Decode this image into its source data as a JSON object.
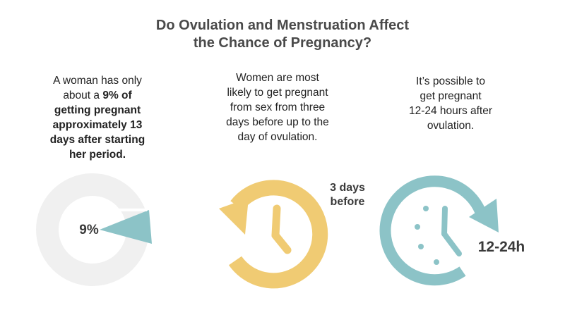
{
  "title": {
    "line1": "Do Ovulation and Menstruation Affect",
    "line2": "the Chance of Pregnancy?"
  },
  "col1": {
    "lines": [
      {
        "plain": "A woman has only",
        "bold": ""
      },
      {
        "plain": "about a ",
        "bold": "9% of"
      },
      {
        "plain": "",
        "bold": "getting pregnant"
      },
      {
        "plain": "",
        "bold": "approximately 13"
      },
      {
        "plain": "",
        "bold": "days after starting"
      },
      {
        "plain": "",
        "bold": "her period."
      }
    ],
    "pie_label": "9%"
  },
  "col2": {
    "lines": [
      "Women are most",
      "likely to get pregnant",
      "from sex from three",
      "days before up to the",
      "day of ovulation."
    ],
    "icon_label_line1": "3 days",
    "icon_label_line2": "before"
  },
  "col3": {
    "lines": [
      "It’s possible to",
      "get pregnant",
      "12-24 hours after",
      "ovulation."
    ],
    "icon_label": "12-24h"
  },
  "colors": {
    "title": "#4a4a4a",
    "ring": "#f0f0f0",
    "teal": "#8cc3c7",
    "yellow": "#f0cb73",
    "text": "#222222"
  },
  "icons": [
    "pie-chart-icon",
    "clock-arrow-icon",
    "clock-forward-arrow-icon"
  ]
}
